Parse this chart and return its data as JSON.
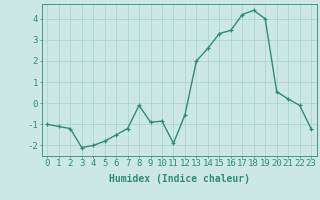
{
  "x": [
    0,
    1,
    2,
    3,
    4,
    5,
    6,
    7,
    8,
    9,
    10,
    11,
    12,
    13,
    14,
    15,
    16,
    17,
    18,
    19,
    20,
    21,
    22,
    23
  ],
  "y": [
    -1.0,
    -1.1,
    -1.2,
    -2.1,
    -2.0,
    -1.8,
    -1.5,
    -1.2,
    -0.1,
    -0.9,
    -0.85,
    -1.9,
    -0.55,
    2.0,
    2.6,
    3.3,
    3.45,
    4.2,
    4.4,
    4.0,
    0.55,
    0.2,
    -0.1,
    -1.2
  ],
  "xlabel": "Humidex (Indice chaleur)",
  "ylim": [
    -2.5,
    4.7
  ],
  "xlim": [
    -0.5,
    23.5
  ],
  "line_color": "#2e8b74",
  "marker_color": "#2e8b74",
  "bg_color": "#cce8e4",
  "grid_color": "#b0d4cf",
  "axis_color": "#2e8b74",
  "tick_color": "#2e8b74",
  "label_color": "#2e8b74",
  "yticks": [
    -2,
    -1,
    0,
    1,
    2,
    3,
    4
  ],
  "xticks": [
    0,
    1,
    2,
    3,
    4,
    5,
    6,
    7,
    8,
    9,
    10,
    11,
    12,
    13,
    14,
    15,
    16,
    17,
    18,
    19,
    20,
    21,
    22,
    23
  ],
  "xlabel_fontsize": 7,
  "tick_fontsize": 6.5
}
